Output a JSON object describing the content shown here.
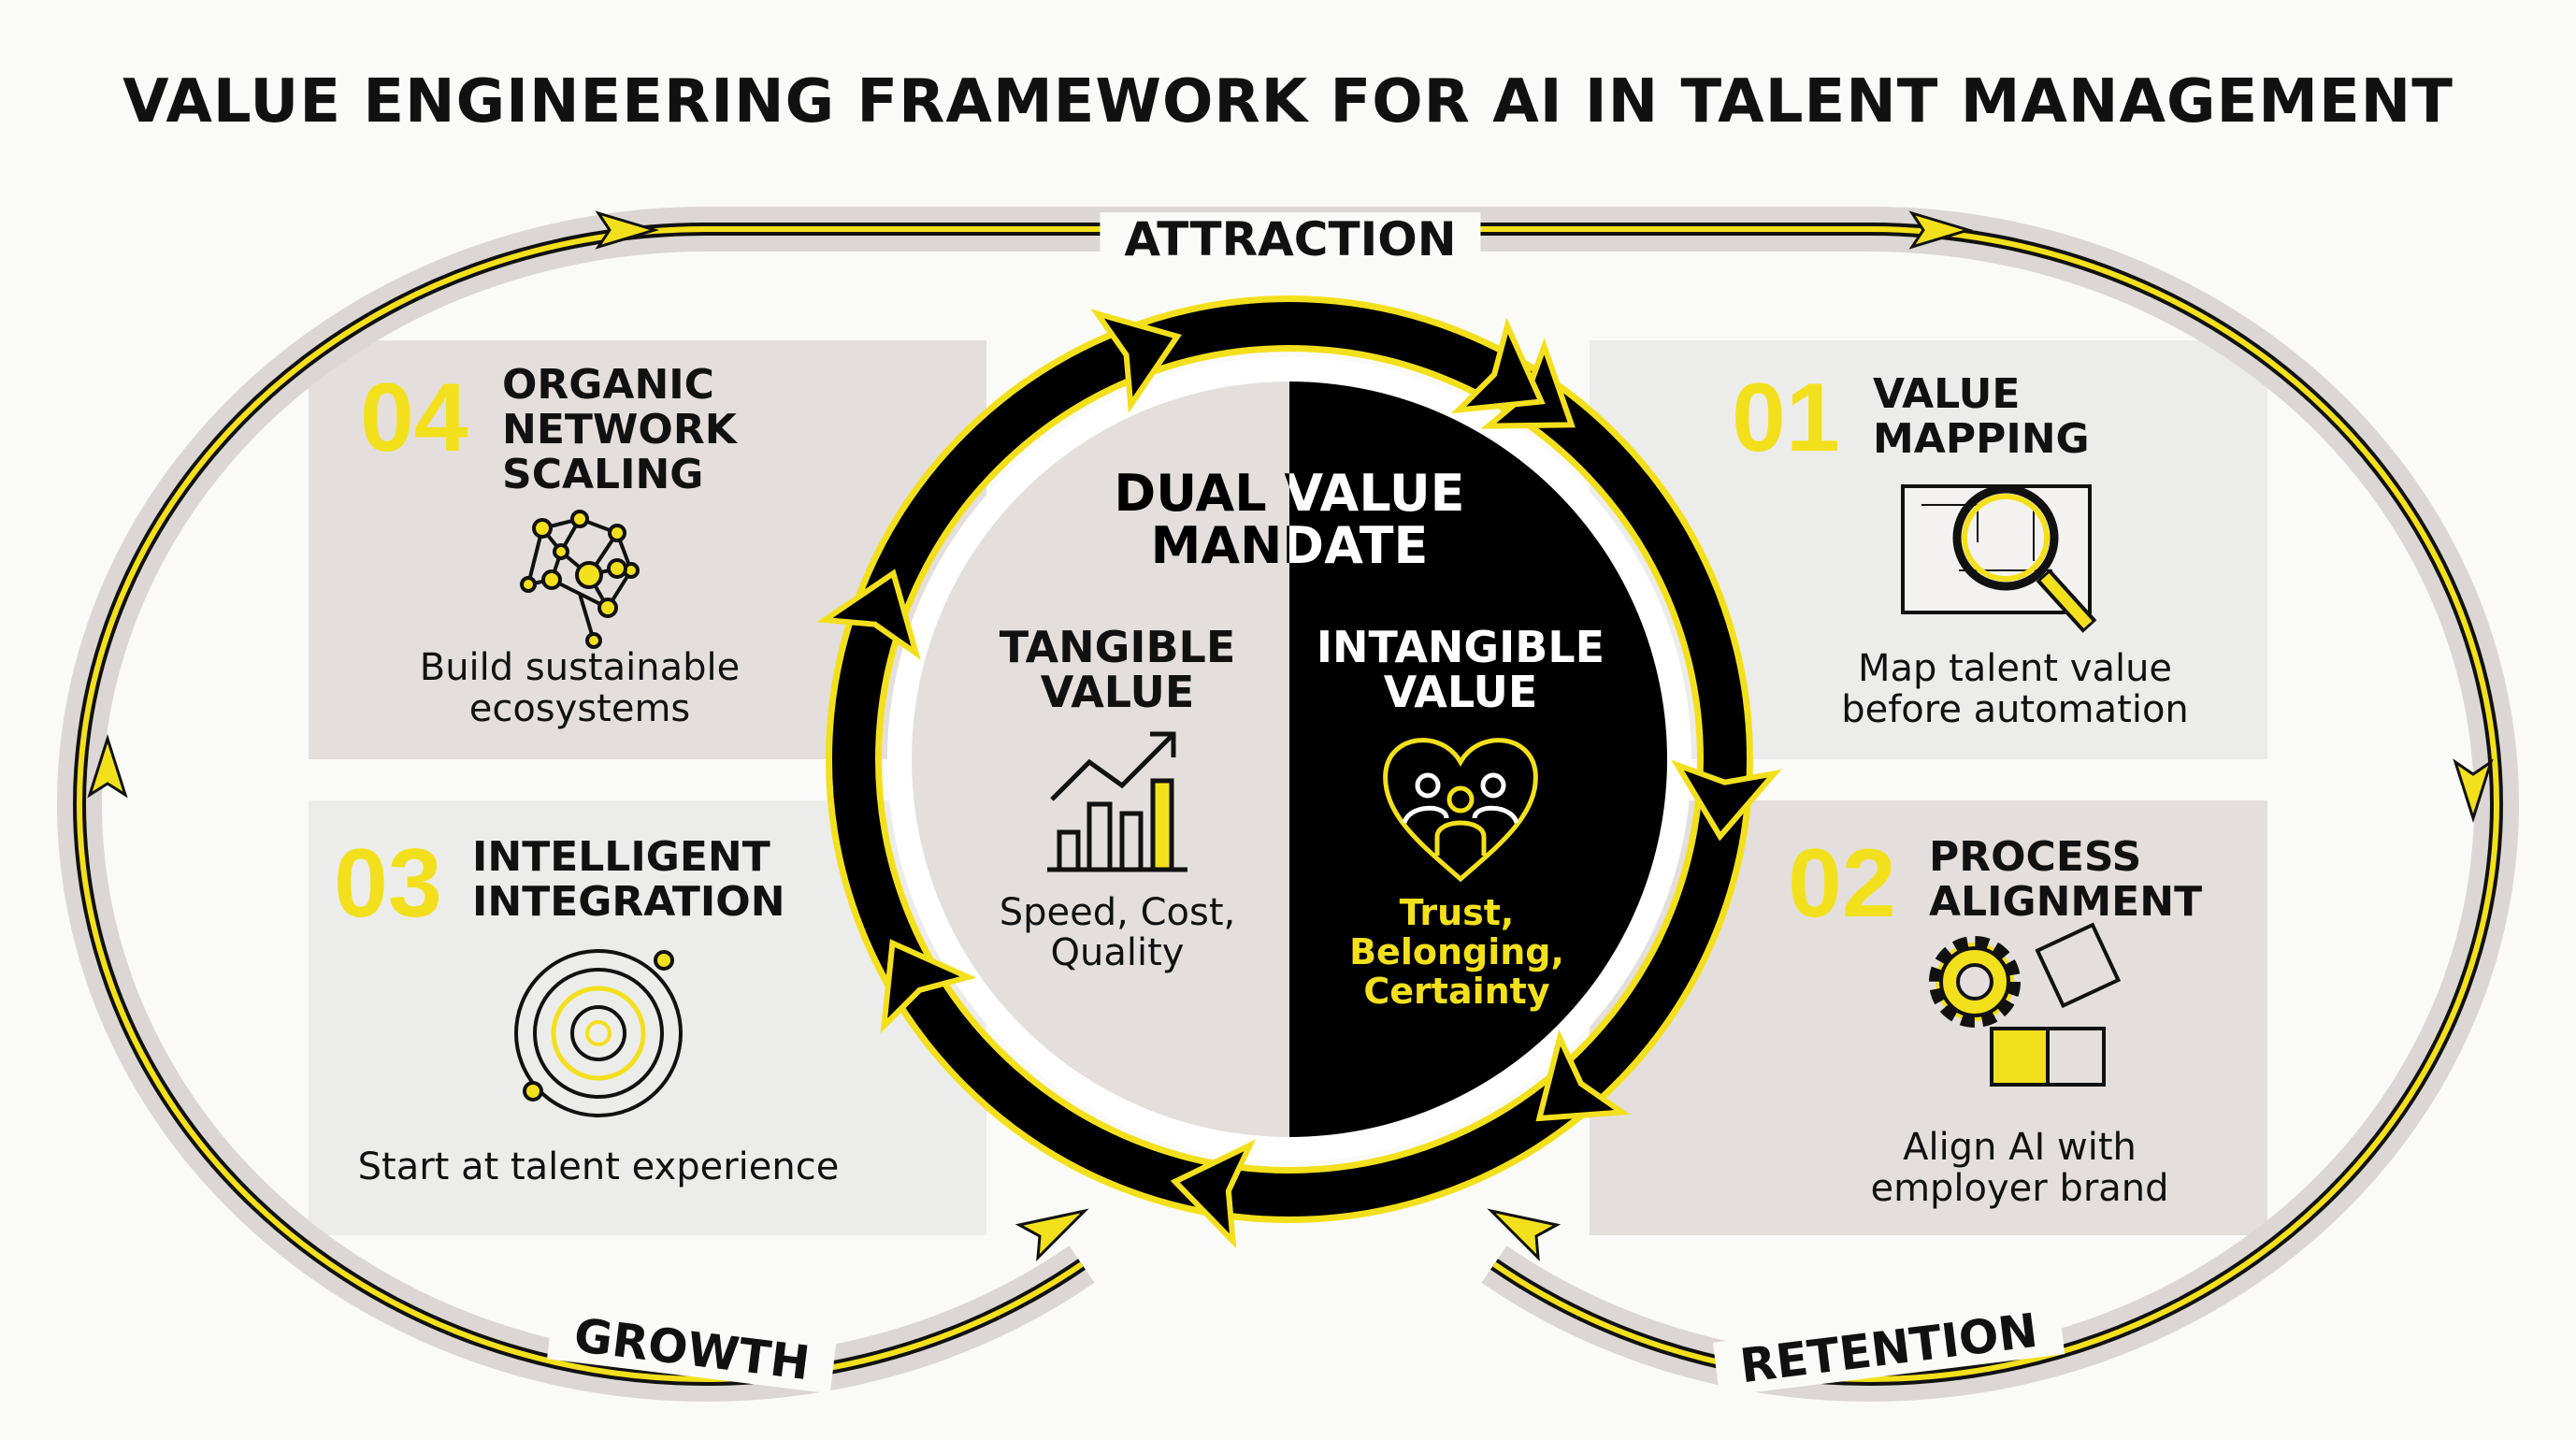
{
  "title": "VALUE ENGINEERING FRAMEWORK FOR AI IN TALENT MANAGEMENT",
  "loop_labels": {
    "top": "ATTRACTION",
    "bottom_left": "GROWTH",
    "bottom_right": "RETENTION"
  },
  "colors": {
    "accent": "#f3e01c",
    "dark": "#000000",
    "panel_dark": "#e4dfdc",
    "panel_light": "#ececeb"
  },
  "panels": [
    {
      "number": "01",
      "title": "VALUE\nMAPPING",
      "description": "Map talent value\nbefore automation",
      "icon": "magnifier-blueprint-icon"
    },
    {
      "number": "02",
      "title": "PROCESS\nALIGNMENT",
      "description": "Align AI with\nemployer brand",
      "icon": "gear-puzzle-icon"
    },
    {
      "number": "03",
      "title": "INTELLIGENT\nINTEGRATION",
      "description": "Start at talent experience",
      "icon": "concentric-target-icon"
    },
    {
      "number": "04",
      "title": "ORGANIC\nNETWORK\nSCALING",
      "description": "Build sustainable\necosystems",
      "icon": "brain-network-icon"
    }
  ],
  "center": {
    "title": "DUAL VALUE\nMANDATE",
    "tangible": {
      "title": "TANGIBLE\nVALUE",
      "description": "Speed, Cost,\nQuality",
      "icon": "bar-chart-growth-icon"
    },
    "intangible": {
      "title": "INTANGIBLE\nVALUE",
      "description": "Trust,\nBelonging,\nCertainty",
      "icon": "heart-people-icon"
    }
  }
}
